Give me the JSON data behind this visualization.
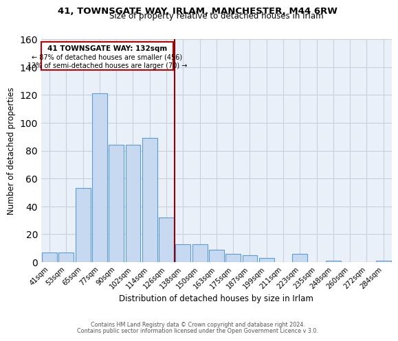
{
  "title": "41, TOWNSGATE WAY, IRLAM, MANCHESTER, M44 6RW",
  "subtitle": "Size of property relative to detached houses in Irlam",
  "xlabel": "Distribution of detached houses by size in Irlam",
  "ylabel": "Number of detached properties",
  "bar_labels": [
    "41sqm",
    "53sqm",
    "65sqm",
    "77sqm",
    "90sqm",
    "102sqm",
    "114sqm",
    "126sqm",
    "138sqm",
    "150sqm",
    "163sqm",
    "175sqm",
    "187sqm",
    "199sqm",
    "211sqm",
    "223sqm",
    "235sqm",
    "248sqm",
    "260sqm",
    "272sqm",
    "284sqm"
  ],
  "bar_values": [
    7,
    7,
    53,
    121,
    84,
    84,
    89,
    32,
    13,
    13,
    9,
    6,
    5,
    3,
    0,
    6,
    0,
    1,
    0,
    0,
    1
  ],
  "bar_color": "#c6d9f0",
  "bar_edge_color": "#5b9bd5",
  "reference_line_color": "#8b0000",
  "annotation_title": "41 TOWNSGATE WAY: 132sqm",
  "annotation_line1": "← 87% of detached houses are smaller (456)",
  "annotation_line2": "13% of semi-detached houses are larger (70) →",
  "annotation_box_edge_color": "#c00000",
  "ylim": [
    0,
    160
  ],
  "yticks": [
    0,
    20,
    40,
    60,
    80,
    100,
    120,
    140,
    160
  ],
  "footer_line1": "Contains HM Land Registry data © Crown copyright and database right 2024.",
  "footer_line2": "Contains public sector information licensed under the Open Government Licence v 3.0.",
  "bg_color": "#ffffff",
  "plot_bg_color": "#eaf0f8",
  "grid_color": "#c8d0dc"
}
